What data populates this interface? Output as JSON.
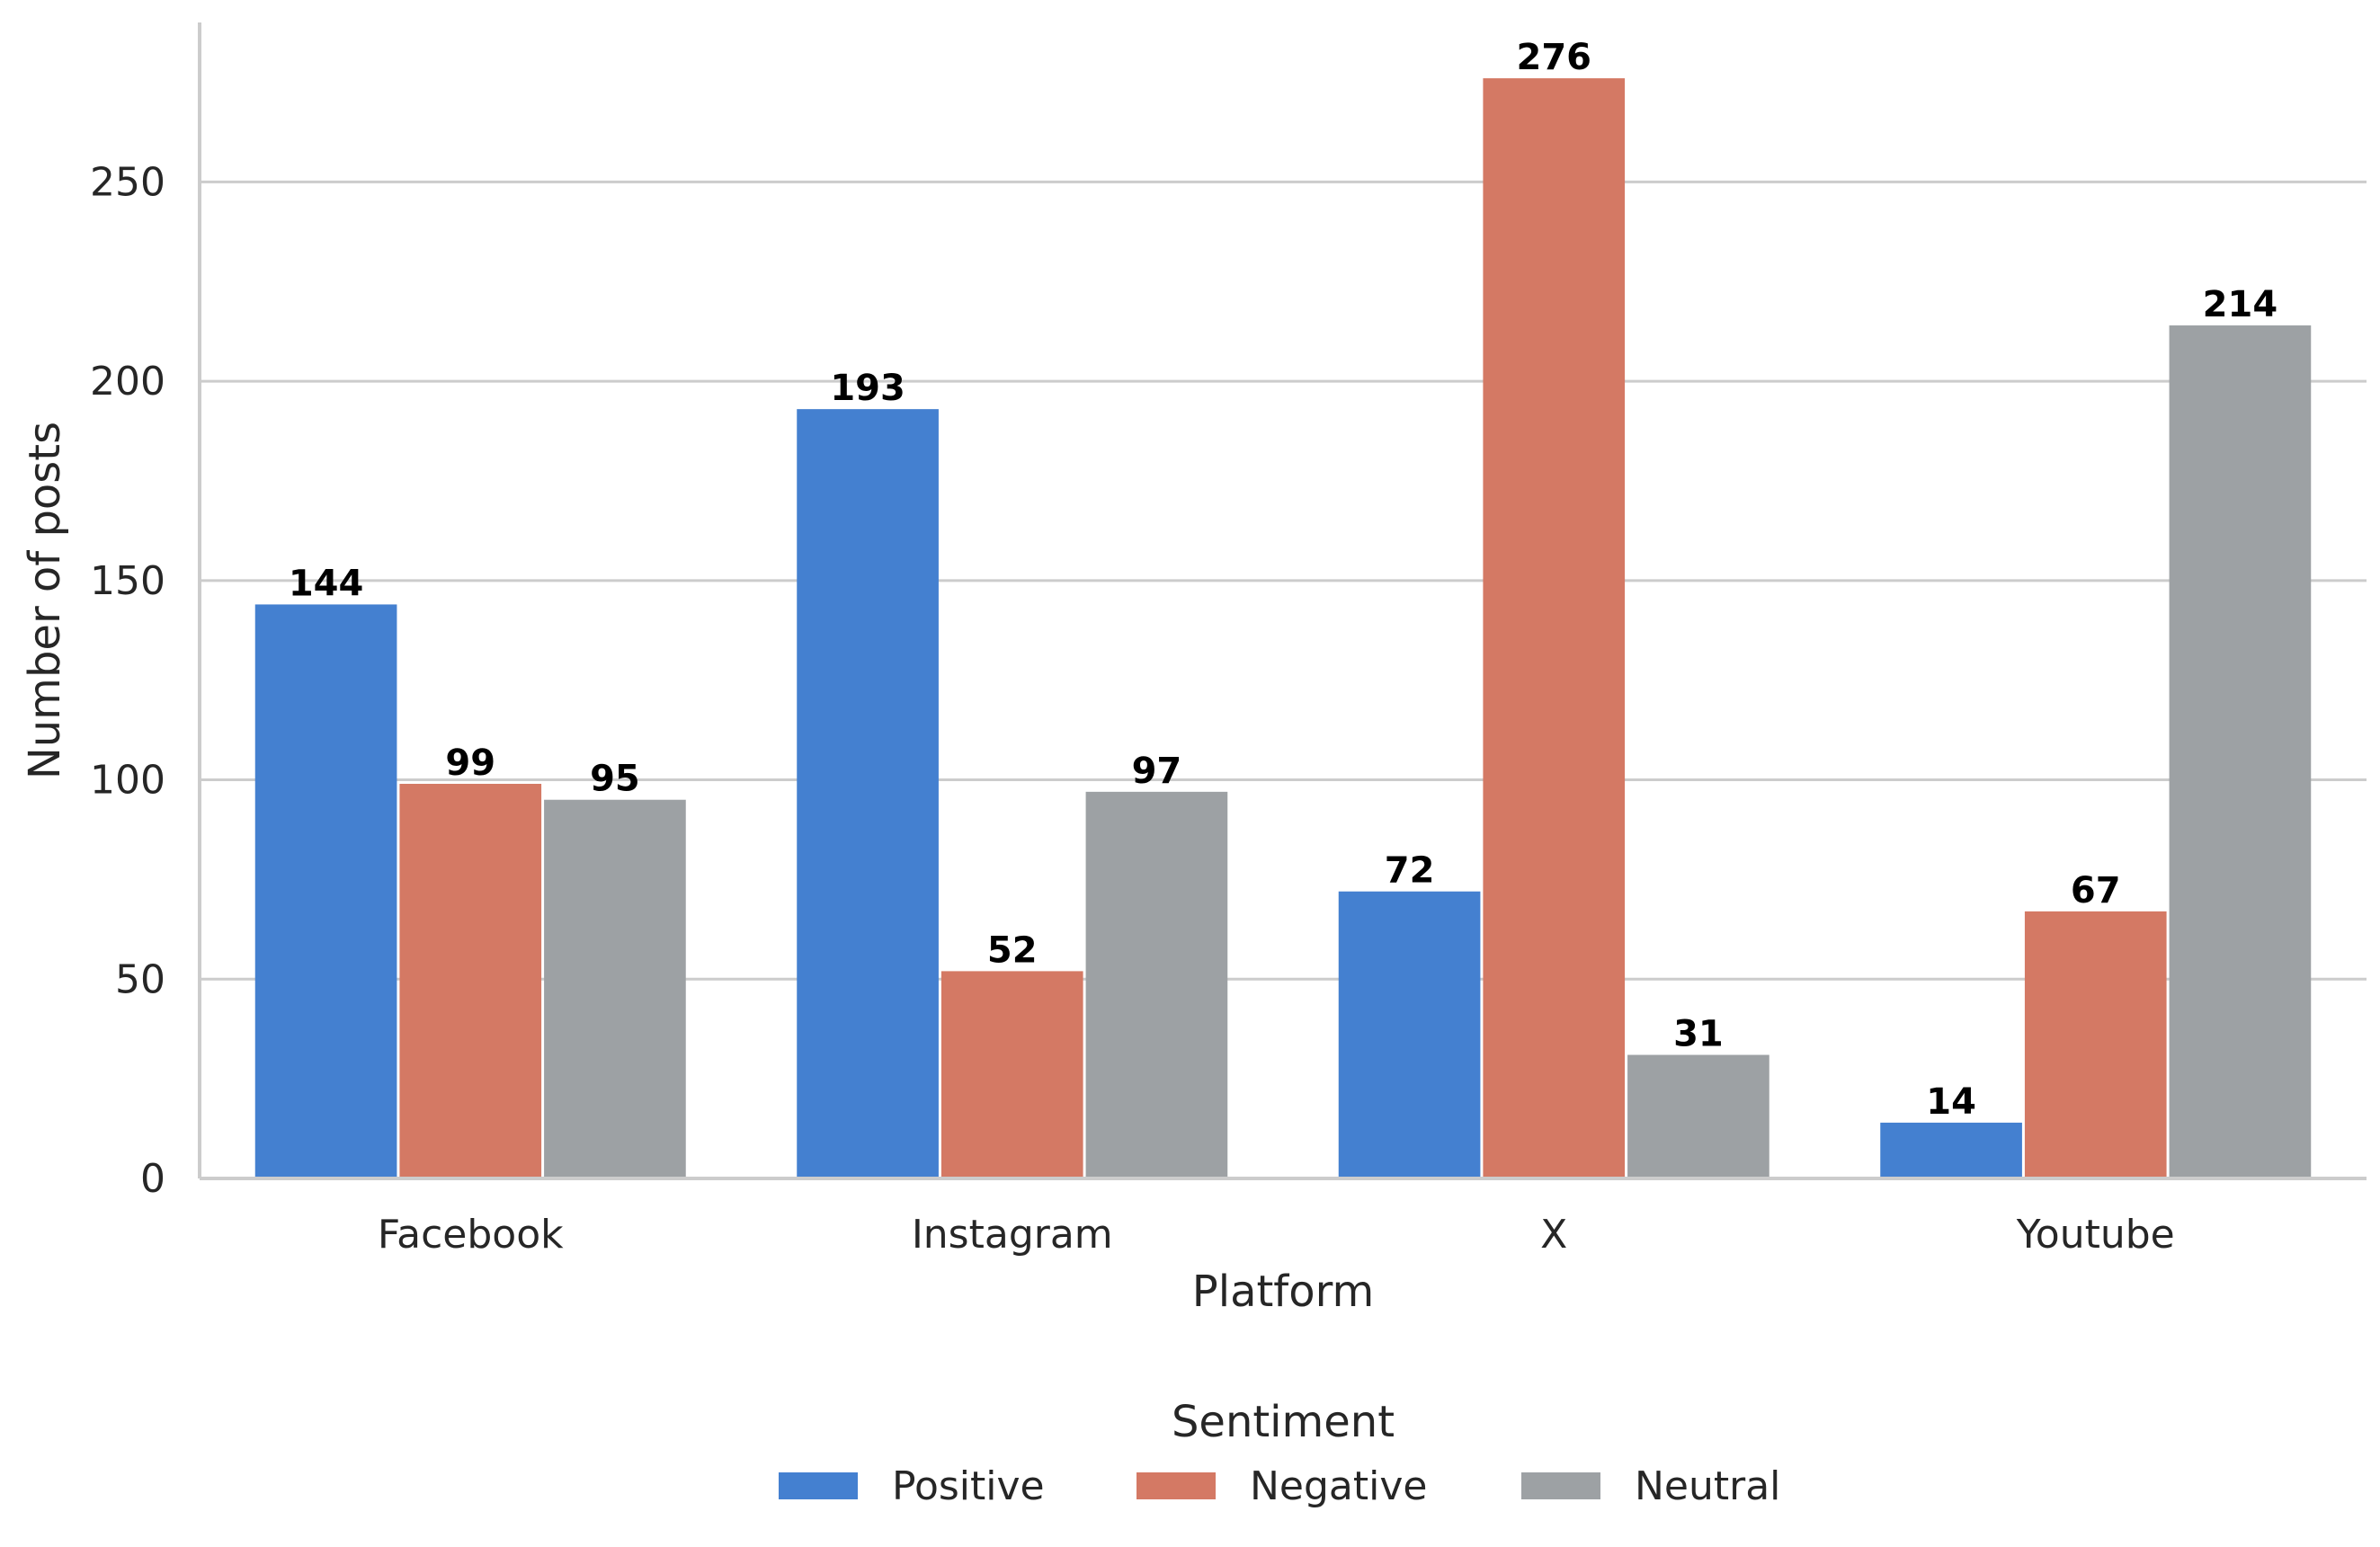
{
  "chart_data": {
    "type": "bar",
    "title": "",
    "xlabel": "Platform",
    "ylabel": "Number of posts",
    "categories": [
      "Facebook",
      "Instagram",
      "X",
      "Youtube"
    ],
    "series": [
      {
        "name": "Positive",
        "color": "#4480d0",
        "values": [
          144,
          193,
          72,
          14
        ]
      },
      {
        "name": "Negative",
        "color": "#d47964",
        "values": [
          99,
          52,
          276,
          67
        ]
      },
      {
        "name": "Neutral",
        "color": "#9da1a4",
        "values": [
          95,
          97,
          31,
          214
        ]
      }
    ],
    "ylim": [
      0,
      290
    ],
    "yticks": [
      "0",
      "50",
      "100",
      "150",
      "200",
      "250"
    ],
    "grid": "horizontal",
    "legend": {
      "title": "Sentiment",
      "placement": "bottom-center"
    },
    "colors": {
      "grid": "#cccccc",
      "axis": "#cccccc",
      "text": "#262626",
      "bar_label": "#000000"
    }
  }
}
